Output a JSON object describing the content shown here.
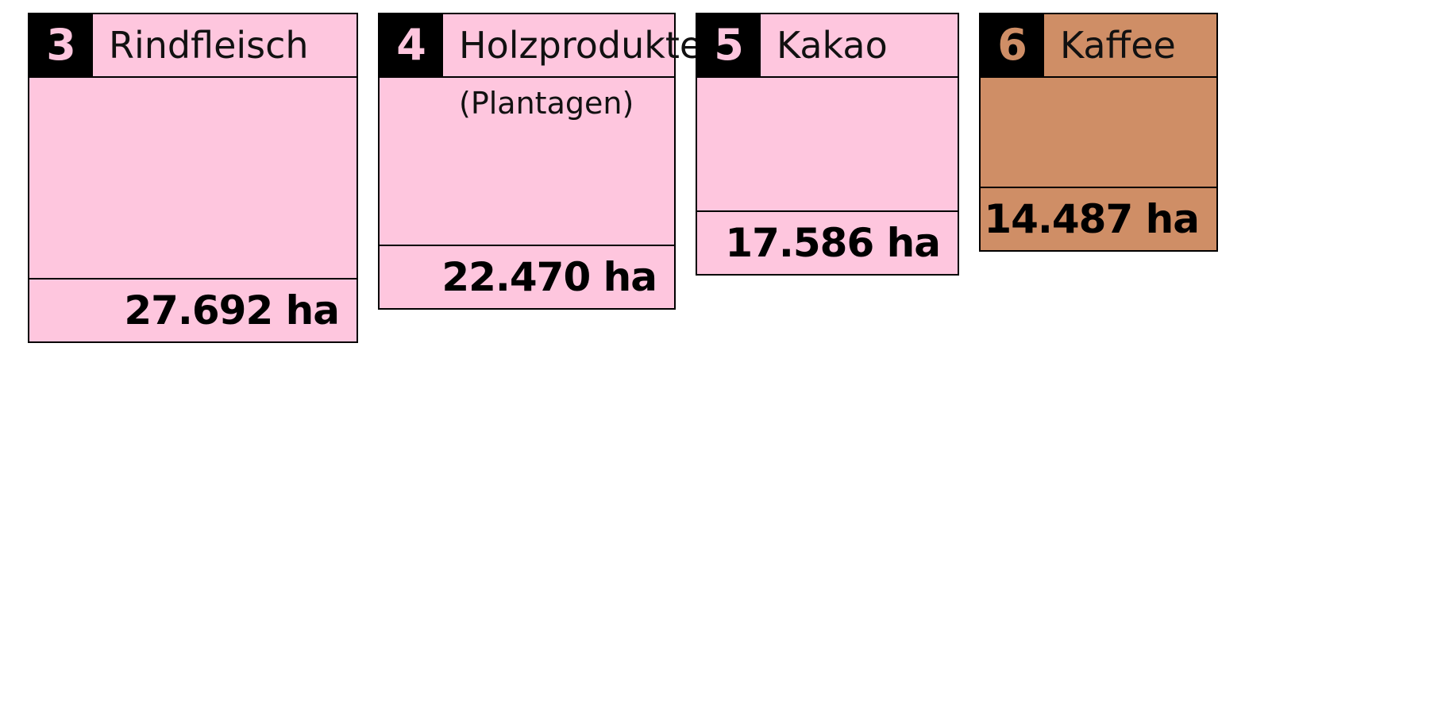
{
  "chart_data": {
    "type": "bar",
    "categories": [
      "Rindfleisch",
      "Holzprodukte",
      "Kakao",
      "Kaffee"
    ],
    "subtitles": [
      "",
      "(Plantagen)",
      "",
      ""
    ],
    "ranks": [
      "3",
      "4",
      "5",
      "6"
    ],
    "values": [
      27692,
      22470,
      17586,
      14487
    ],
    "value_labels": [
      "27.692 ha",
      "22.470 ha",
      "17.586 ha",
      "14.487 ha"
    ],
    "unit": "ha",
    "colors": [
      "#fec6de",
      "#fec6de",
      "#fec6de",
      "#cf8e66"
    ],
    "rank_text_colors": [
      "#fec6de",
      "#fec6de",
      "#fec6de",
      "#cf8e66"
    ],
    "title": "",
    "xlabel": "",
    "ylabel": ""
  }
}
